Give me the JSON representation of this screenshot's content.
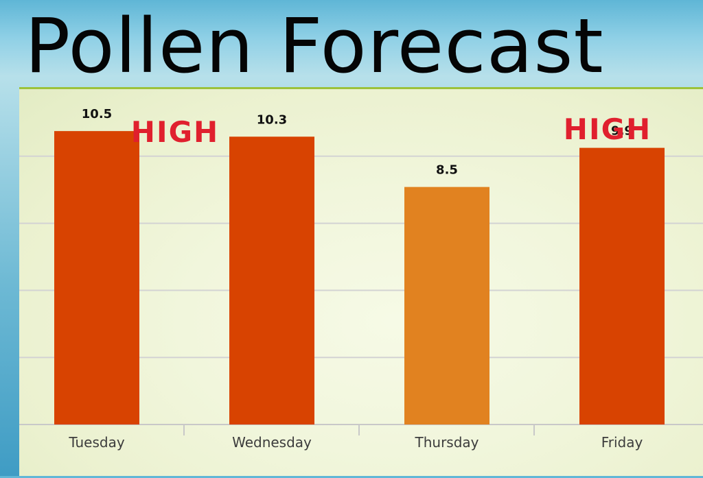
{
  "title": "Pollen Forecast",
  "chart_data": {
    "type": "bar",
    "categories": [
      "Tuesday",
      "Wednesday",
      "Thursday",
      "Friday"
    ],
    "values": [
      10.5,
      10.3,
      8.5,
      9.9
    ],
    "value_labels": [
      "10.5",
      "10.3",
      "8.5",
      "9.9"
    ],
    "bar_colors": [
      "#d84301",
      "#d84301",
      "#e18220",
      "#d84301"
    ],
    "annotations": [
      {
        "text": "HIGH",
        "category": "Tuesday"
      },
      {
        "text": "HIGH",
        "category": "Friday"
      }
    ],
    "ylim": [
      0,
      12
    ],
    "gridlines": [
      0,
      2.4,
      4.8,
      7.2,
      9.6,
      12
    ],
    "grid": true,
    "colors": {
      "grid": "#d3d3d3",
      "high": "#e0202e"
    }
  }
}
